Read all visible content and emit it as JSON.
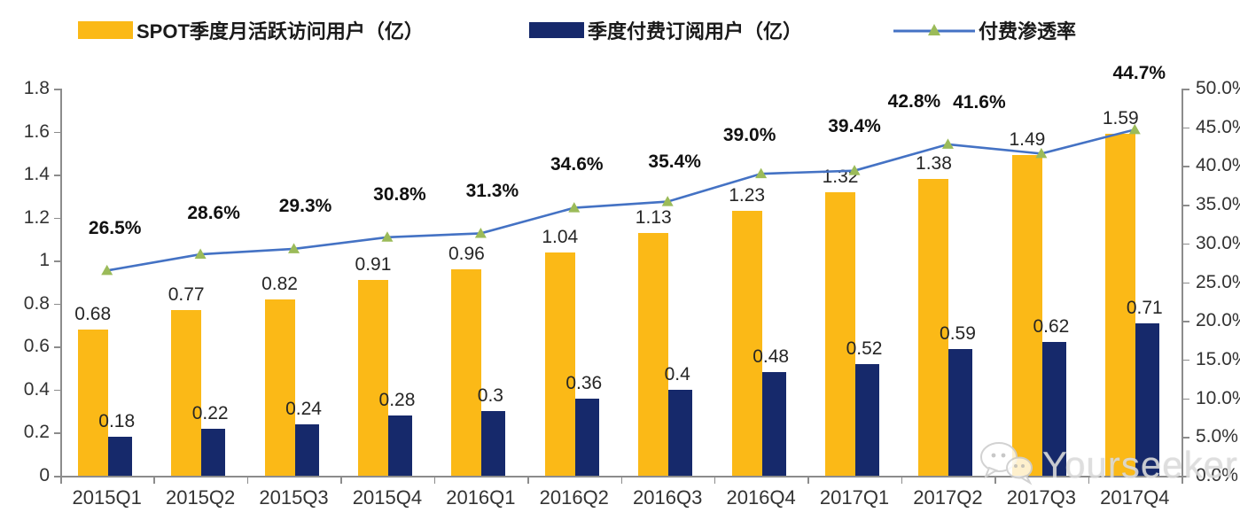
{
  "legend": {
    "items": [
      {
        "label": "SPOT季度月活跃访问用户（亿）",
        "color": "#FBB917",
        "type": "bar"
      },
      {
        "label": "季度付费订阅用户（亿）",
        "color": "#16296B",
        "type": "bar"
      },
      {
        "label": "付费渗透率",
        "line_color": "#4472C4",
        "marker_color": "#9BBB59",
        "type": "line"
      }
    ]
  },
  "watermark": {
    "text": "Yourseeker",
    "icon": "wechat-icon"
  },
  "chart_data": {
    "type": "bar",
    "subtype": "grouped-bars-with-line",
    "categories": [
      "2015Q1",
      "2015Q2",
      "2015Q3",
      "2015Q4",
      "2016Q1",
      "2016Q2",
      "2016Q3",
      "2016Q4",
      "2017Q1",
      "2017Q2",
      "2017Q3",
      "2017Q4"
    ],
    "series": [
      {
        "name": "SPOT季度月活跃访问用户（亿）",
        "type": "bar",
        "axis": "left",
        "color": "#FBB917",
        "values": [
          0.68,
          0.77,
          0.82,
          0.91,
          0.96,
          1.04,
          1.13,
          1.23,
          1.32,
          1.38,
          1.49,
          1.59
        ],
        "labels": [
          "0.68",
          "0.77",
          "0.82",
          "0.91",
          "0.96",
          "1.04",
          "1.13",
          "1.23",
          "1.32",
          "1.38",
          "1.49",
          "1.59"
        ]
      },
      {
        "name": "季度付费订阅用户（亿）",
        "type": "bar",
        "axis": "left",
        "color": "#16296B",
        "values": [
          0.18,
          0.22,
          0.24,
          0.28,
          0.3,
          0.36,
          0.4,
          0.48,
          0.52,
          0.59,
          0.62,
          0.71
        ],
        "labels": [
          "0.18",
          "0.22",
          "0.24",
          "0.28",
          "0.3",
          "0.36",
          "0.4",
          "0.48",
          "0.52",
          "0.59",
          "0.62",
          "0.71"
        ]
      },
      {
        "name": "付费渗透率",
        "type": "line",
        "axis": "right",
        "color": "#4472C4",
        "marker": "triangle",
        "marker_color": "#9BBB59",
        "values": [
          26.5,
          28.6,
          29.3,
          30.8,
          31.3,
          34.6,
          35.4,
          39.0,
          39.4,
          42.8,
          41.6,
          44.7
        ],
        "labels": [
          "26.5%",
          "28.6%",
          "29.3%",
          "30.8%",
          "31.3%",
          "34.6%",
          "35.4%",
          "39.0%",
          "39.4%",
          "42.8%",
          "41.6%",
          "44.7%"
        ]
      }
    ],
    "left_axis": {
      "min": 0,
      "max": 1.8,
      "ticks": [
        "0",
        "0.2",
        "0.4",
        "0.6",
        "0.8",
        "1",
        "1.2",
        "1.4",
        "1.6",
        "1.8"
      ]
    },
    "right_axis": {
      "min": 0,
      "max": 50,
      "ticks": [
        "0.0%",
        "5.0%",
        "10.0%",
        "15.0%",
        "20.0%",
        "25.0%",
        "30.0%",
        "35.0%",
        "40.0%",
        "45.0%",
        "50.0%"
      ]
    },
    "grid": false,
    "legend_position": "top",
    "title": ""
  }
}
